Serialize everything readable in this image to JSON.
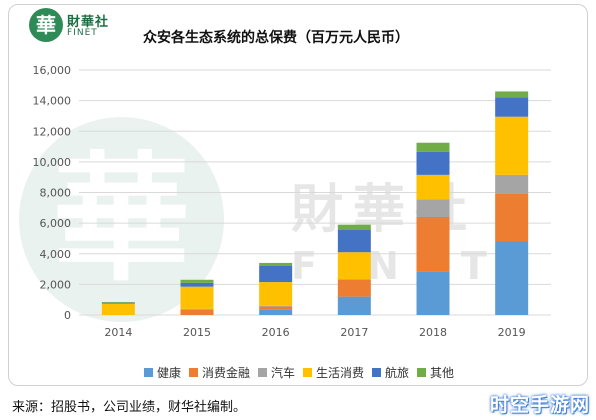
{
  "logo": {
    "mark": "華",
    "name_cn": "財華社",
    "name_en": "FINET"
  },
  "watermark": {
    "mark": "華",
    "name_cn": "財華社",
    "name_en": "FINET"
  },
  "chart_data": {
    "type": "bar",
    "stacked": true,
    "title": "众安各生态系统的总保费（百万元人民币）",
    "xlabel": "",
    "ylabel": "",
    "categories": [
      "2014",
      "2015",
      "2016",
      "2017",
      "2018",
      "2019"
    ],
    "ylim": [
      0,
      16000
    ],
    "yticks": [
      0,
      2000,
      4000,
      6000,
      8000,
      10000,
      12000,
      14000,
      16000
    ],
    "ytick_labels": [
      "0",
      "2,000",
      "4,000",
      "6,000",
      "8,000",
      "10,000",
      "12,000",
      "14,000",
      "16,000"
    ],
    "grid": true,
    "legend_position": "bottom",
    "series": [
      {
        "name": "健康",
        "color": "#5b9bd5",
        "values": [
          0,
          0,
          350,
          1200,
          2850,
          4800
        ]
      },
      {
        "name": "消费金融",
        "color": "#ed7d31",
        "values": [
          0,
          350,
          200,
          1100,
          3550,
          3150
        ]
      },
      {
        "name": "汽车",
        "color": "#a5a5a5",
        "values": [
          0,
          50,
          50,
          50,
          1150,
          1200
        ]
      },
      {
        "name": "生活消费",
        "color": "#ffc000",
        "values": [
          750,
          1450,
          1550,
          1750,
          1600,
          3800
        ]
      },
      {
        "name": "航旅",
        "color": "#4472c4",
        "values": [
          50,
          250,
          1050,
          1450,
          1500,
          1250
        ]
      },
      {
        "name": "其他",
        "color": "#70ad47",
        "values": [
          50,
          200,
          200,
          350,
          600,
          400
        ]
      }
    ]
  },
  "footer": {
    "source": "来源：招股书，公司业绩，财华社编制。",
    "brand": "时空手游网"
  }
}
